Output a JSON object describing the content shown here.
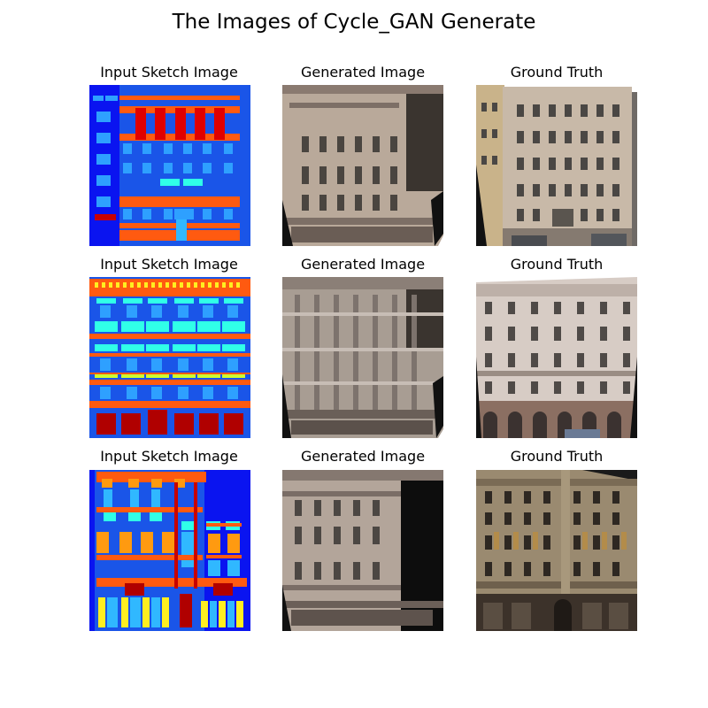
{
  "figure": {
    "title": "The Images of Cycle_GAN Generate"
  },
  "columns": [
    "Input Sketch Image",
    "Generated Image",
    "Ground Truth"
  ],
  "rows": [
    {
      "sketch": "sketch-1",
      "generated": "generated-1",
      "truth": "truth-1"
    },
    {
      "sketch": "sketch-2",
      "generated": "generated-2",
      "truth": "truth-2"
    },
    {
      "sketch": "sketch-3",
      "generated": "generated-3",
      "truth": "truth-3"
    }
  ],
  "colors": {
    "sketch_background": "#0a14f0",
    "sketch_wall": "#1a55e8",
    "sketch_window": "#2ea0ff",
    "sketch_cornice": "#ff5a10",
    "sketch_cyan": "#30ffe8",
    "sketch_red": "#c80000",
    "sketch_yellow": "#ffee20",
    "sketch_orange": "#ff9a10",
    "facade_stone": "#b9a99a",
    "facade_dark": "#3a342f"
  }
}
